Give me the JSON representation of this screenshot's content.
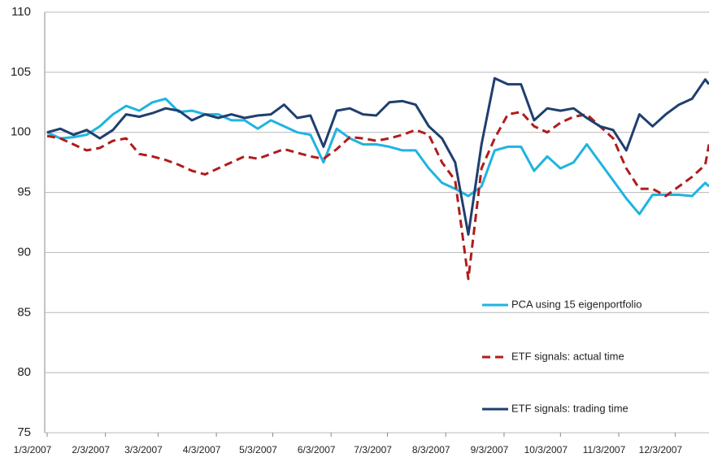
{
  "chart_data": {
    "type": "line",
    "x": [
      "2007-01-03",
      "2007-01-10",
      "2007-01-17",
      "2007-01-24",
      "2007-01-31",
      "2007-02-07",
      "2007-02-14",
      "2007-02-21",
      "2007-02-28",
      "2007-03-07",
      "2007-03-14",
      "2007-03-21",
      "2007-03-28",
      "2007-04-04",
      "2007-04-11",
      "2007-04-18",
      "2007-04-25",
      "2007-05-02",
      "2007-05-09",
      "2007-05-16",
      "2007-05-23",
      "2007-05-30",
      "2007-06-06",
      "2007-06-13",
      "2007-06-20",
      "2007-06-27",
      "2007-07-04",
      "2007-07-11",
      "2007-07-18",
      "2007-07-25",
      "2007-08-01",
      "2007-08-08",
      "2007-08-15",
      "2007-08-22",
      "2007-08-29",
      "2007-09-05",
      "2007-09-12",
      "2007-09-19",
      "2007-09-26",
      "2007-10-03",
      "2007-10-10",
      "2007-10-17",
      "2007-10-24",
      "2007-10-31",
      "2007-11-07",
      "2007-11-14",
      "2007-11-21",
      "2007-11-28",
      "2007-12-05",
      "2007-12-12",
      "2007-12-19",
      "2007-12-21"
    ],
    "series": [
      {
        "name": "PCA using 15 eigenportfolio",
        "color": "#1fb4e0",
        "dash": "solid",
        "values": [
          100,
          99.5,
          99.6,
          99.8,
          100.5,
          101.5,
          102.2,
          101.8,
          102.5,
          102.8,
          101.7,
          101.8,
          101.5,
          101.5,
          101,
          101,
          100.3,
          101,
          100.5,
          100,
          99.8,
          97.5,
          100.3,
          99.5,
          99,
          99,
          98.8,
          98.5,
          98.5,
          97,
          95.8,
          95.3,
          94.7,
          95.5,
          98.5,
          98.8,
          98.8,
          96.8,
          98,
          97,
          97.5,
          99,
          97.5,
          96,
          94.5,
          93.2,
          94.8,
          94.8,
          94.8,
          94.7,
          95.8,
          95.5
        ]
      },
      {
        "name": "ETF signals: actual time",
        "color": "#b01c1c",
        "dash": "dashed",
        "values": [
          99.7,
          99.5,
          99,
          98.5,
          98.7,
          99.3,
          99.5,
          98.2,
          98,
          97.7,
          97.3,
          96.8,
          96.5,
          97,
          97.5,
          98,
          97.8,
          98.2,
          98.6,
          98.3,
          98,
          97.8,
          98.6,
          99.6,
          99.5,
          99.3,
          99.5,
          99.8,
          100.2,
          99.8,
          97.5,
          96,
          87.8,
          97,
          99.5,
          101.5,
          101.7,
          100.5,
          100,
          100.8,
          101.3,
          101.5,
          100.5,
          99.5,
          97,
          95.3,
          95.3,
          94.7,
          95.5,
          96.3,
          97.3,
          99
        ]
      },
      {
        "name": "ETF signals: trading time",
        "color": "#1f3f6e",
        "dash": "solid",
        "values": [
          100,
          100.3,
          99.8,
          100.2,
          99.5,
          100.2,
          101.5,
          101.3,
          101.6,
          102,
          101.8,
          101,
          101.5,
          101.2,
          101.5,
          101.2,
          101.4,
          101.5,
          102.3,
          101.2,
          101.4,
          98.8,
          101.8,
          102,
          101.5,
          101.4,
          102.5,
          102.6,
          102.3,
          100.5,
          99.5,
          97.5,
          91.5,
          99,
          104.5,
          104,
          104,
          101,
          102,
          101.8,
          102,
          101.2,
          100.5,
          100.2,
          98.5,
          101.5,
          100.5,
          101.5,
          102.3,
          102.8,
          104.4,
          104
        ]
      }
    ],
    "xlim": [
      "2007-01-03",
      "2007-12-21"
    ],
    "xticks": [
      {
        "value": "2007-01-03",
        "label": "1/3/2007"
      },
      {
        "value": "2007-02-03",
        "label": "2/3/2007"
      },
      {
        "value": "2007-03-03",
        "label": "3/3/2007"
      },
      {
        "value": "2007-04-03",
        "label": "4/3/2007"
      },
      {
        "value": "2007-05-03",
        "label": "5/3/2007"
      },
      {
        "value": "2007-06-03",
        "label": "6/3/2007"
      },
      {
        "value": "2007-07-03",
        "label": "7/3/2007"
      },
      {
        "value": "2007-08-03",
        "label": "8/3/2007"
      },
      {
        "value": "2007-09-03",
        "label": "9/3/2007"
      },
      {
        "value": "2007-10-03",
        "label": "10/3/2007"
      },
      {
        "value": "2007-11-03",
        "label": "11/3/2007"
      },
      {
        "value": "2007-12-03",
        "label": "12/3/2007"
      }
    ],
    "ylim": [
      75,
      110
    ],
    "yticks": [
      75,
      80,
      85,
      90,
      95,
      100,
      105,
      110
    ],
    "grid": true,
    "legend": "right"
  }
}
